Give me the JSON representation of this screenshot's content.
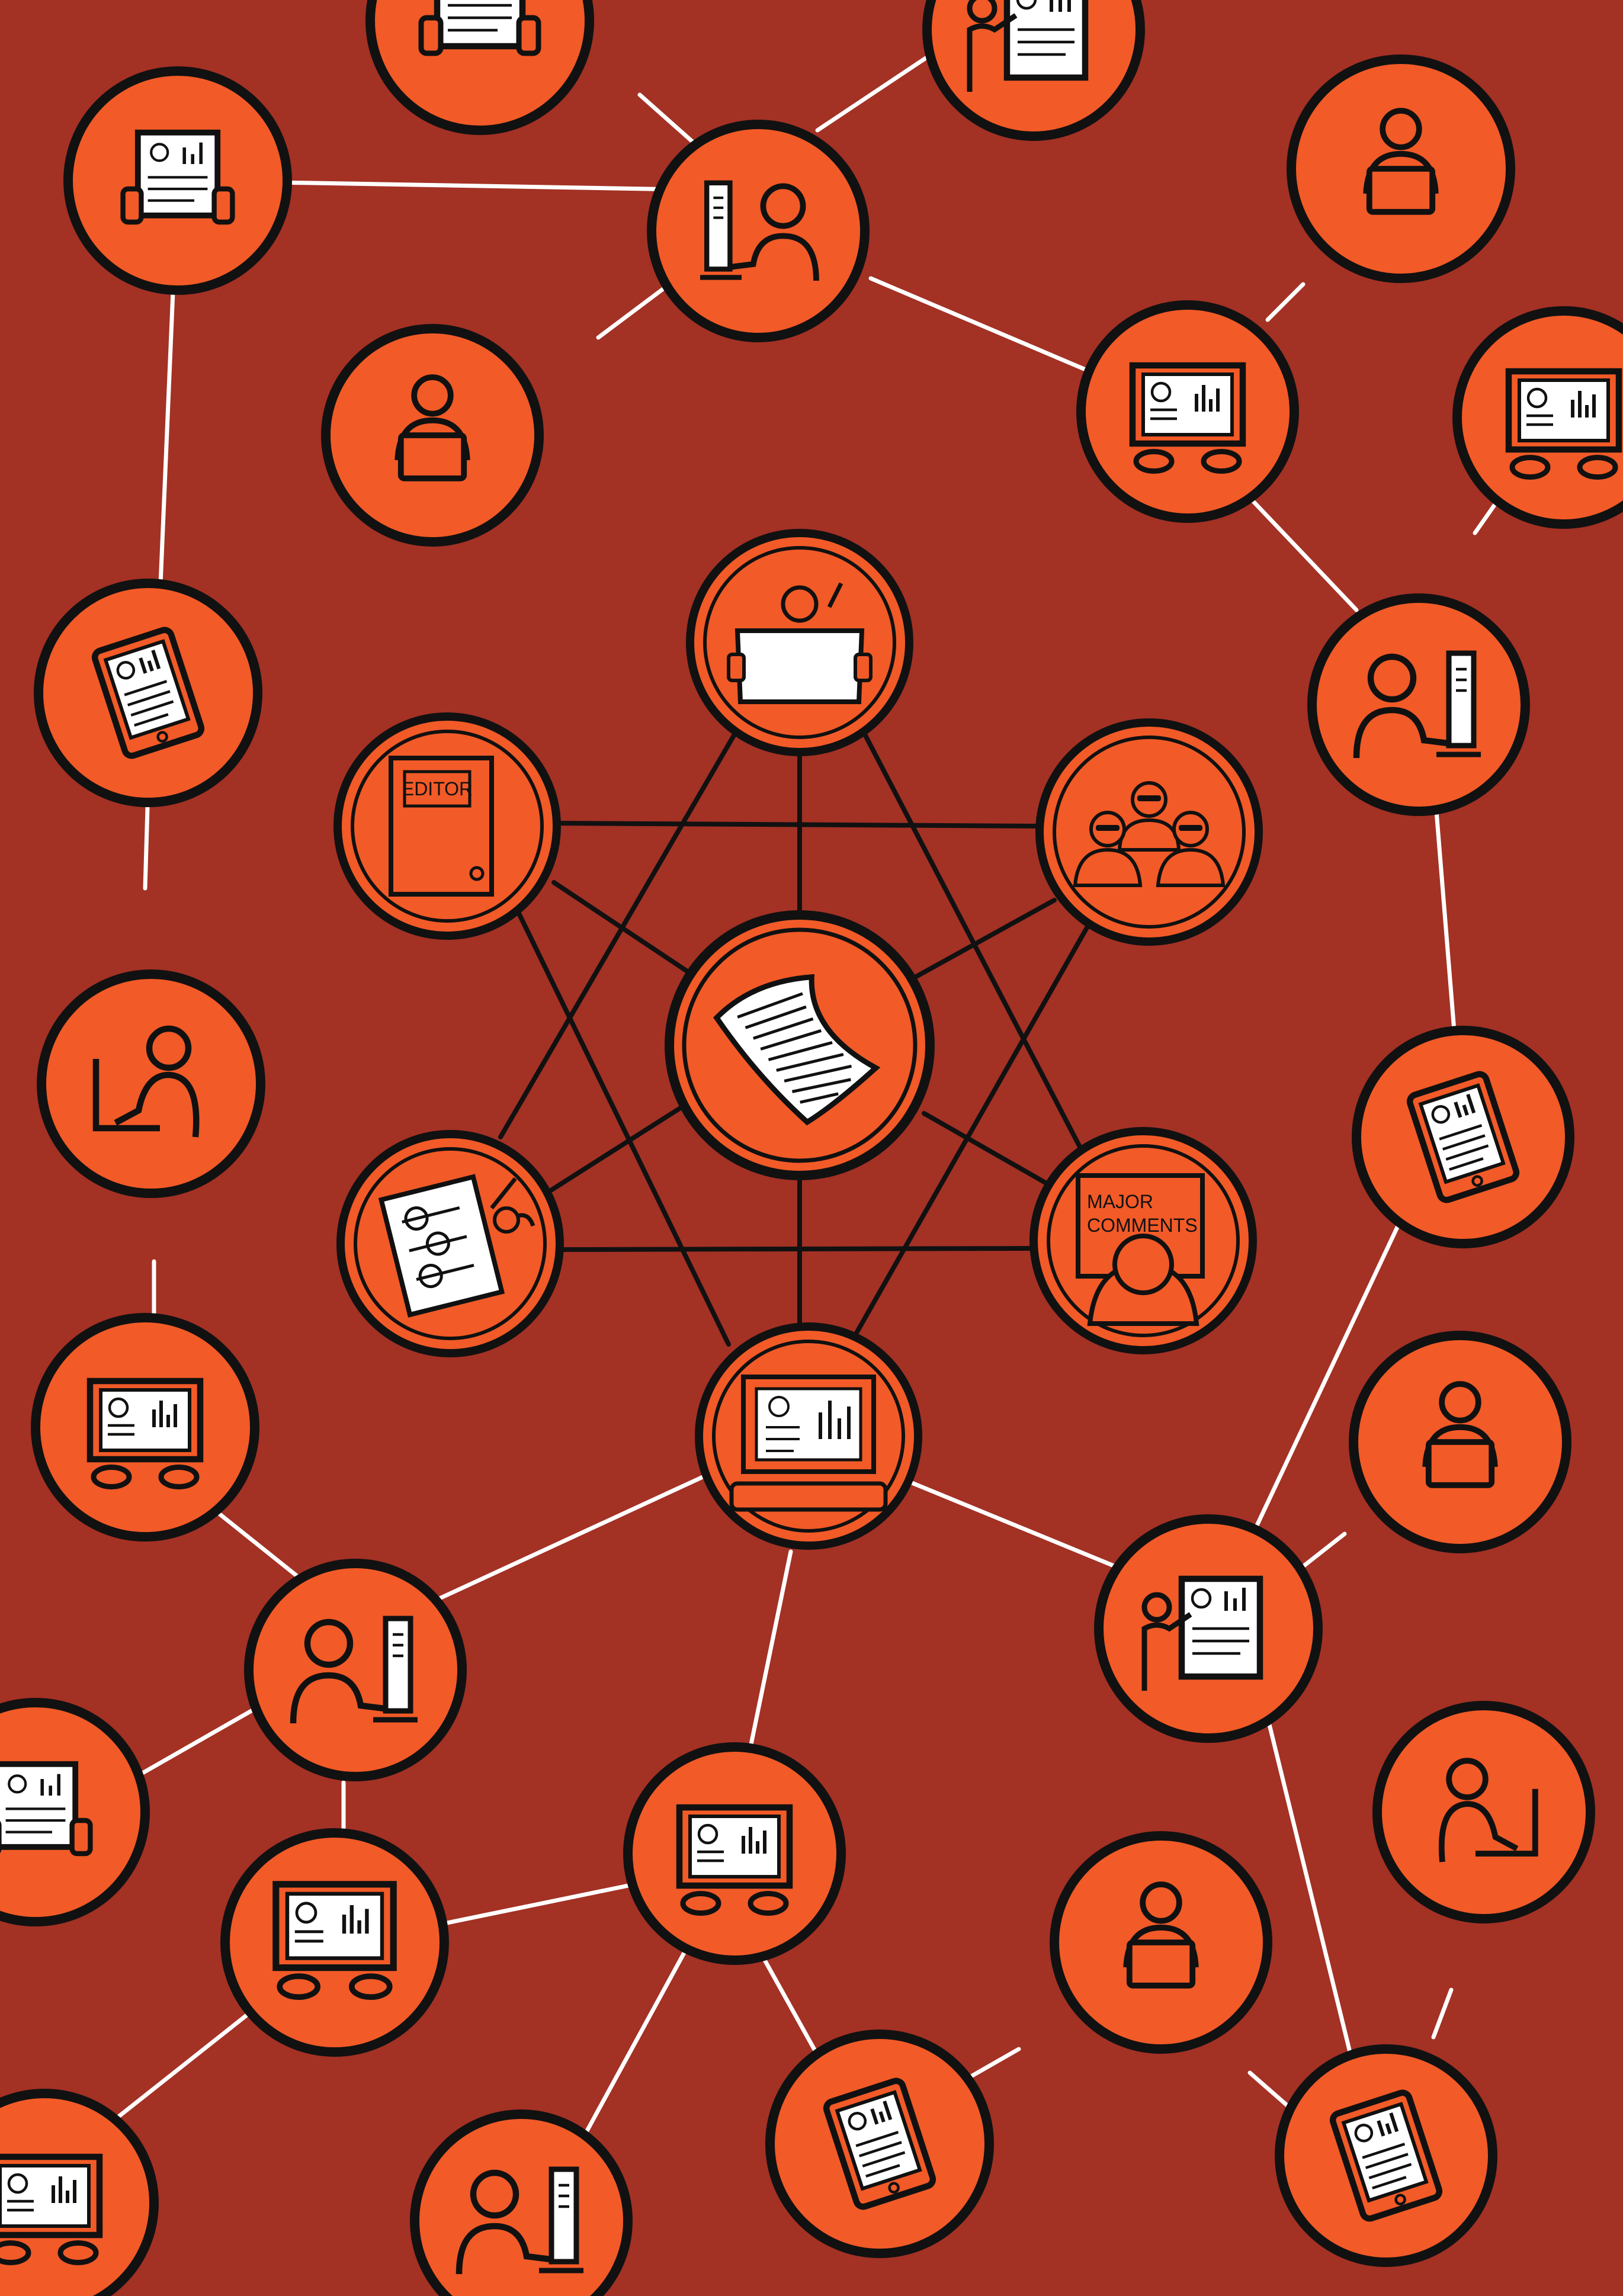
{
  "palette": {
    "background": "#a33124",
    "circle_fill": "#f25a27",
    "ink": "#111111",
    "paper": "#ffffff",
    "outer_link": "#ffffff",
    "inner_link": "#111111"
  },
  "labels": {
    "editor_door": "EDITOR",
    "major_comments_line1": "MAJOR",
    "major_comments_line2": "COMMENTS"
  }
}
